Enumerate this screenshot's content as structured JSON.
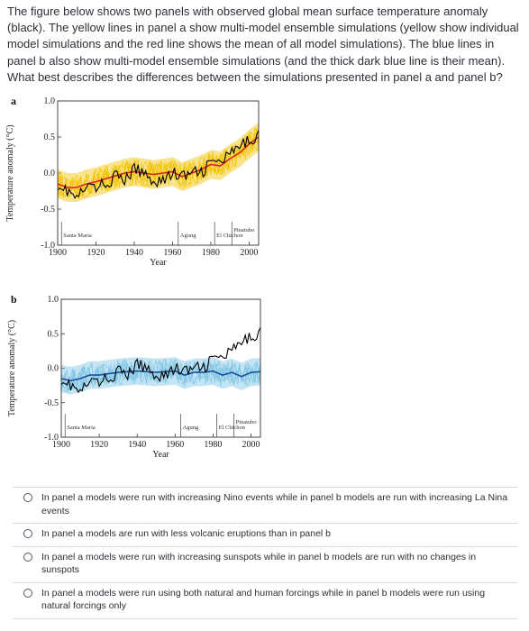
{
  "question": "The figure below shows two panels with observed global mean surface temperature anomaly (black). The yellow lines in panel a show multi-model ensemble simulations (yellow show individual model simulations and the red line shows the mean of all model simulations). The blue lines in panel b also show multi-model ensemble simulations (and the thick dark blue line is their mean). What best describes the differences between the simulations presented in panel a and panel b?",
  "chart_data": [
    {
      "type": "line",
      "panel_label": "a",
      "xlabel": "Year",
      "ylabel": "Temperature anomaly (°C)",
      "xlim": [
        1900,
        2005
      ],
      "ylim": [
        -1.0,
        1.0
      ],
      "x_ticks": [
        "1900",
        "1920",
        "1940",
        "1960",
        "1980",
        "2000"
      ],
      "y_ticks": [
        "1.0",
        "0.5",
        "0.0",
        "-0.5",
        "-1.0"
      ],
      "annotations": [
        {
          "text": "Santa Maria",
          "x": 1902
        },
        {
          "text": "Agung",
          "x": 1963
        },
        {
          "text": "El Chichon",
          "x": 1982
        },
        {
          "text": "Pinatubo",
          "x": 1991
        }
      ],
      "series": [
        {
          "role": "observed",
          "color": "#000000",
          "x": [
            1900,
            1905,
            1910,
            1915,
            1920,
            1925,
            1930,
            1935,
            1940,
            1945,
            1950,
            1955,
            1960,
            1965,
            1970,
            1975,
            1980,
            1985,
            1990,
            1995,
            2000,
            2005
          ],
          "values": [
            -0.15,
            -0.25,
            -0.35,
            -0.2,
            -0.2,
            -0.15,
            -0.05,
            -0.1,
            0.05,
            0.0,
            -0.1,
            -0.1,
            0.0,
            -0.05,
            0.0,
            0.0,
            0.15,
            0.15,
            0.25,
            0.35,
            0.45,
            0.55
          ]
        },
        {
          "role": "model-mean",
          "color": "#dd2222",
          "x": [
            1900,
            1905,
            1910,
            1915,
            1920,
            1925,
            1930,
            1935,
            1940,
            1945,
            1950,
            1955,
            1960,
            1965,
            1970,
            1975,
            1980,
            1985,
            1990,
            1995,
            2000,
            2005
          ],
          "values": [
            -0.15,
            -0.2,
            -0.2,
            -0.15,
            -0.12,
            -0.08,
            -0.04,
            0.0,
            0.02,
            0.0,
            -0.02,
            0.0,
            0.02,
            -0.05,
            0.0,
            0.05,
            0.12,
            0.1,
            0.2,
            0.28,
            0.4,
            0.5
          ]
        },
        {
          "role": "model-spread",
          "color": "#f2c200",
          "x": [
            1900,
            1905,
            1910,
            1915,
            1920,
            1925,
            1930,
            1935,
            1940,
            1945,
            1950,
            1955,
            1960,
            1965,
            1970,
            1975,
            1980,
            1985,
            1990,
            1995,
            2000,
            2005
          ],
          "upper": [
            0.05,
            0.0,
            0.0,
            0.05,
            0.08,
            0.12,
            0.16,
            0.2,
            0.22,
            0.2,
            0.18,
            0.2,
            0.22,
            0.15,
            0.2,
            0.25,
            0.32,
            0.3,
            0.4,
            0.48,
            0.6,
            0.7
          ],
          "lower": [
            -0.35,
            -0.4,
            -0.4,
            -0.35,
            -0.32,
            -0.28,
            -0.24,
            -0.2,
            -0.18,
            -0.2,
            -0.22,
            -0.2,
            -0.18,
            -0.25,
            -0.2,
            -0.15,
            -0.08,
            -0.1,
            0.0,
            0.08,
            0.2,
            0.3
          ]
        }
      ]
    },
    {
      "type": "line",
      "panel_label": "b",
      "xlabel": "Year",
      "ylabel": "Temperature anomaly (°C)",
      "xlim": [
        1900,
        2005
      ],
      "ylim": [
        -1.0,
        1.0
      ],
      "x_ticks": [
        "1900",
        "1920",
        "1940",
        "1960",
        "1980",
        "2000"
      ],
      "y_ticks": [
        "1.0",
        "0.5",
        "0.0",
        "-0.5",
        "-1.0"
      ],
      "annotations": [
        {
          "text": "Santa Maria",
          "x": 1902
        },
        {
          "text": "Agung",
          "x": 1963
        },
        {
          "text": "El Chichon",
          "x": 1982
        },
        {
          "text": "Pinatubo",
          "x": 1991
        }
      ],
      "series": [
        {
          "role": "observed",
          "color": "#000000",
          "x": [
            1900,
            1905,
            1910,
            1915,
            1920,
            1925,
            1930,
            1935,
            1940,
            1945,
            1950,
            1955,
            1960,
            1965,
            1970,
            1975,
            1980,
            1985,
            1990,
            1995,
            2000,
            2005
          ],
          "values": [
            -0.15,
            -0.25,
            -0.35,
            -0.2,
            -0.2,
            -0.15,
            -0.05,
            -0.1,
            0.05,
            0.0,
            -0.1,
            -0.1,
            0.0,
            -0.05,
            0.0,
            0.0,
            0.15,
            0.15,
            0.25,
            0.35,
            0.45,
            0.55
          ]
        },
        {
          "role": "model-mean",
          "color": "#1f4e9c",
          "x": [
            1900,
            1905,
            1910,
            1915,
            1920,
            1925,
            1930,
            1935,
            1940,
            1945,
            1950,
            1955,
            1960,
            1965,
            1970,
            1975,
            1980,
            1985,
            1990,
            1995,
            2000,
            2005
          ],
          "values": [
            -0.15,
            -0.18,
            -0.15,
            -0.1,
            -0.1,
            -0.08,
            -0.06,
            -0.05,
            -0.04,
            -0.05,
            -0.06,
            -0.05,
            -0.04,
            -0.1,
            -0.06,
            -0.06,
            -0.04,
            -0.1,
            -0.06,
            -0.12,
            -0.06,
            -0.05
          ]
        },
        {
          "role": "model-spread",
          "color": "#7cc4e4",
          "x": [
            1900,
            1905,
            1910,
            1915,
            1920,
            1925,
            1930,
            1935,
            1940,
            1945,
            1950,
            1955,
            1960,
            1965,
            1970,
            1975,
            1980,
            1985,
            1990,
            1995,
            2000,
            2005
          ],
          "upper": [
            0.05,
            0.02,
            0.05,
            0.1,
            0.1,
            0.12,
            0.14,
            0.15,
            0.16,
            0.15,
            0.14,
            0.15,
            0.16,
            0.1,
            0.14,
            0.14,
            0.16,
            0.1,
            0.14,
            0.08,
            0.14,
            0.15
          ],
          "lower": [
            -0.35,
            -0.38,
            -0.35,
            -0.3,
            -0.3,
            -0.28,
            -0.26,
            -0.25,
            -0.24,
            -0.25,
            -0.26,
            -0.25,
            -0.24,
            -0.3,
            -0.26,
            -0.26,
            -0.24,
            -0.3,
            -0.26,
            -0.32,
            -0.26,
            -0.25
          ]
        }
      ]
    }
  ],
  "options": [
    "In panel a models were run with increasing Nino events while in panel b models are run with increasing La Nina events",
    "In panel a models are run with less volcanic eruptions than in panel b",
    "In panel a models were run with increasing sunspots while in panel b models are run with no changes in sunspots",
    "In panel a models were run using both natural and human forcings while in panel b models were run using natural forcings only"
  ]
}
